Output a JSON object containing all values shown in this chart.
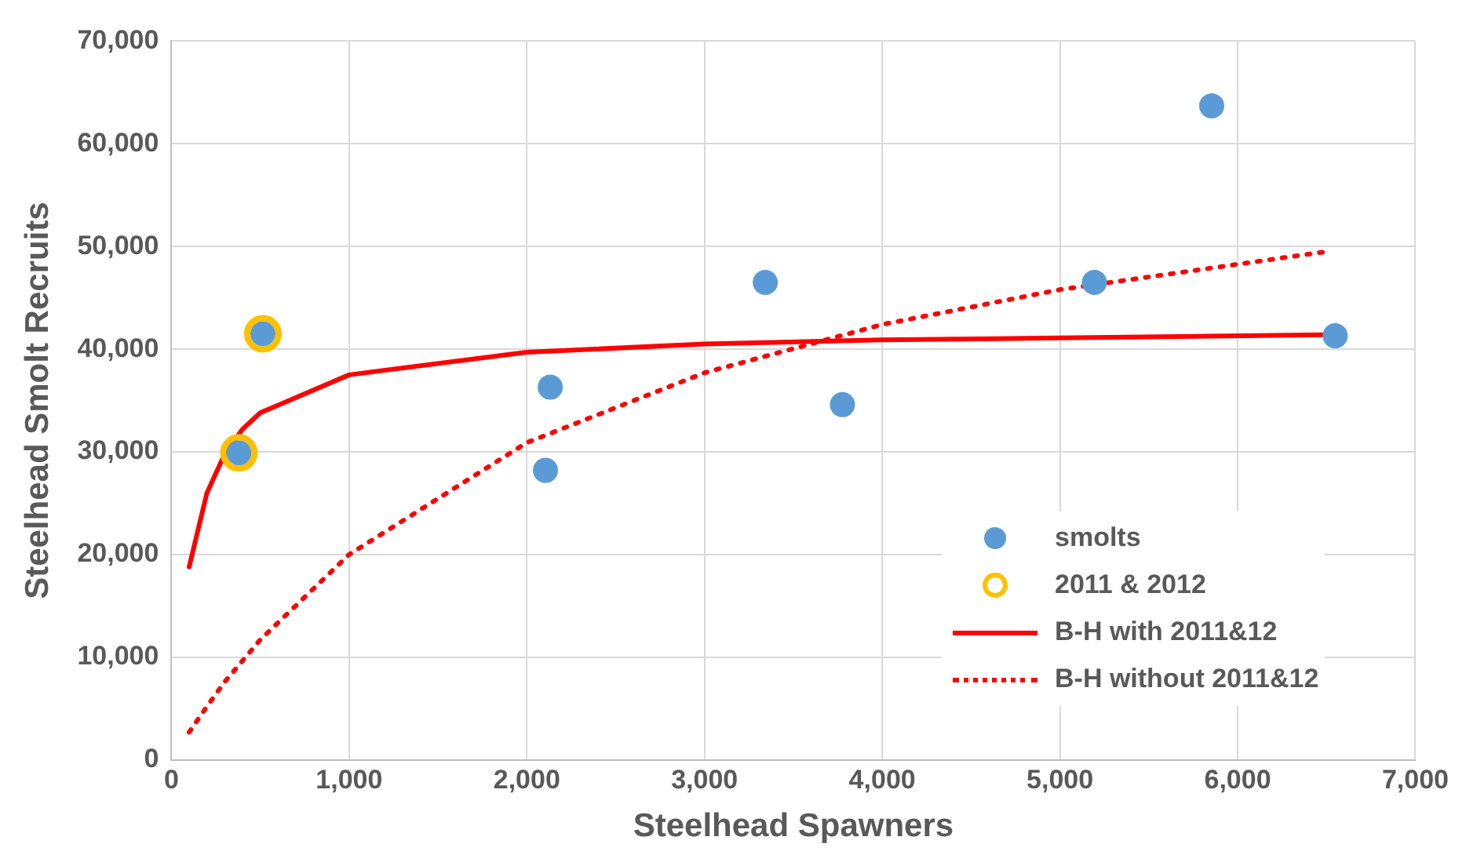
{
  "chart_data": {
    "type": "scatter",
    "xlabel": "Steelhead Spawners",
    "ylabel": "Steelhead Smolt Recruits",
    "xlim": [
      0,
      7000
    ],
    "xticks": [
      {
        "value": 0,
        "label": "0"
      },
      {
        "value": 1000,
        "label": "1,000"
      },
      {
        "value": 2000,
        "label": "2,000"
      },
      {
        "value": 3000,
        "label": "3,000"
      },
      {
        "value": 4000,
        "label": "4,000"
      },
      {
        "value": 5000,
        "label": "5,000"
      },
      {
        "value": 6000,
        "label": "6,000"
      },
      {
        "value": 7000,
        "label": "7,000"
      }
    ],
    "ylim": [
      0,
      70000
    ],
    "yticks": [
      {
        "value": 0,
        "label": "0"
      },
      {
        "value": 10000,
        "label": "10,000"
      },
      {
        "value": 20000,
        "label": "20,000"
      },
      {
        "value": 30000,
        "label": "30,000"
      },
      {
        "value": 40000,
        "label": "40,000"
      },
      {
        "value": 50000,
        "label": "50,000"
      },
      {
        "value": 60000,
        "label": "60,000"
      },
      {
        "value": 70000,
        "label": "70,000"
      }
    ],
    "grid": true,
    "legend": "bottom right",
    "series": [
      {
        "name": "smolts",
        "type": "scatter",
        "marker": "circle",
        "color": "#5b9bd5",
        "x": [
          380,
          515,
          2105,
          2132,
          3342,
          3776,
          5194,
          5854,
          6549
        ],
        "values": [
          29900,
          41500,
          28200,
          36300,
          46500,
          34600,
          46500,
          63700,
          41300
        ]
      },
      {
        "name": "2011 & 2012",
        "type": "scatter",
        "marker": "circle",
        "color": "#ffc000",
        "x": [
          380,
          515
        ],
        "values": [
          29900,
          41500
        ]
      },
      {
        "name": "B-H with 2011&12",
        "type": "line",
        "line_style": "solid",
        "color": "#ff0000",
        "x": [
          100,
          200,
          300,
          400,
          500,
          1000,
          2000,
          3000,
          4000,
          5000,
          6500
        ],
        "values": [
          18800,
          26000,
          29800,
          32200,
          33800,
          37500,
          39700,
          40500,
          40900,
          41100,
          41400
        ]
      },
      {
        "name": "B-H without 2011&12",
        "type": "line",
        "line_style": "dotted",
        "color": "#ff0000",
        "x": [
          100,
          200,
          300,
          500,
          1000,
          2000,
          3000,
          4000,
          5000,
          6500
        ],
        "values": [
          2700,
          5200,
          7600,
          11700,
          20000,
          30900,
          37700,
          42400,
          45800,
          49500
        ]
      }
    ]
  }
}
